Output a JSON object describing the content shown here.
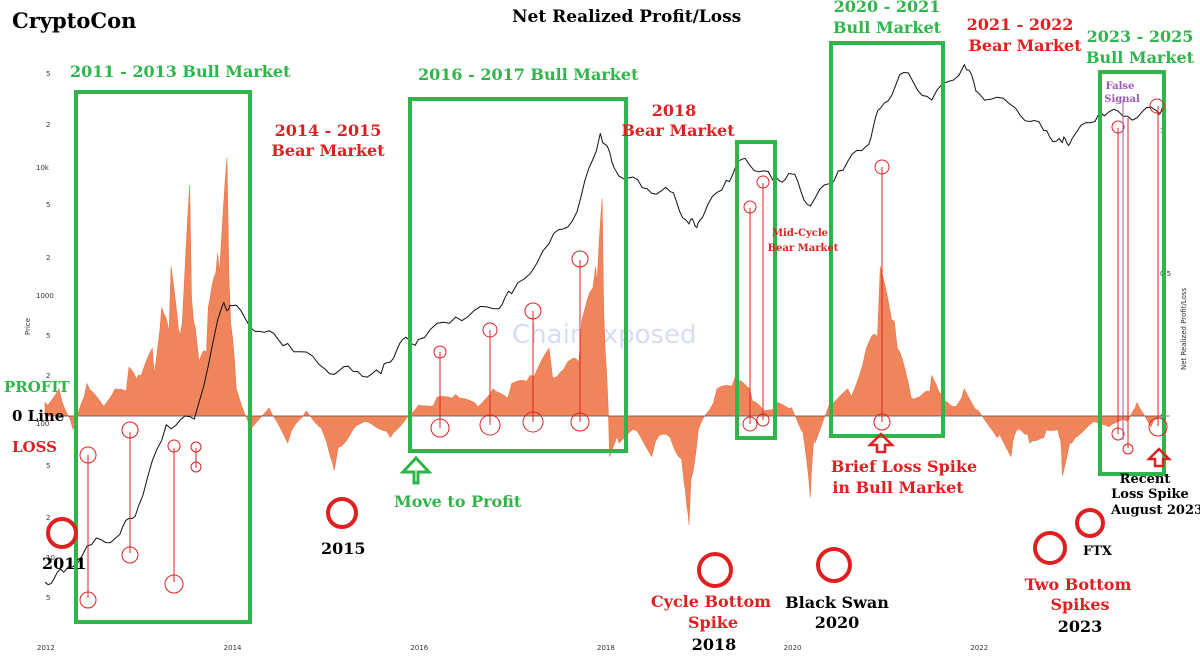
{
  "brand": "CryptoCon",
  "colors": {
    "profit_loss": "#f0845a",
    "price": "#111111",
    "bull": "#2fb54a",
    "bear": "#e02020",
    "marker": "#e02020",
    "false_signal": "#9b59b6",
    "watermark": "#d8dcf4"
  },
  "chart_data": {
    "type": "area",
    "title": "Net Realized Profit/Loss",
    "watermark": "ChainExposed",
    "x_ticks": [
      "2012",
      "2014",
      "2016",
      "2018",
      "2020",
      "2022"
    ],
    "x_range": [
      2012.0,
      2024.0
    ],
    "y_left_label": "Price",
    "y_left_ticks": [
      "5",
      "2",
      "10k",
      "5",
      "2",
      "1000",
      "5",
      "2",
      "100",
      "5",
      "2",
      "10",
      "5"
    ],
    "y_right_label": "Net Realized Profit/Loss",
    "y_right_ticks": [
      "1",
      "0.5",
      "0"
    ],
    "price_series": {
      "name": "Price",
      "x": [
        2012.0,
        2012.2,
        2012.5,
        2012.8,
        2013.0,
        2013.3,
        2013.6,
        2013.9,
        2014.0,
        2014.3,
        2014.6,
        2015.0,
        2015.3,
        2015.6,
        2015.8,
        2016.0,
        2016.4,
        2016.8,
        2017.0,
        2017.4,
        2017.7,
        2017.95,
        2018.1,
        2018.4,
        2018.7,
        2018.9,
        2019.0,
        2019.3,
        2019.5,
        2019.8,
        2020.0,
        2020.2,
        2020.5,
        2020.8,
        2020.95,
        2021.2,
        2021.5,
        2021.85,
        2022.0,
        2022.4,
        2022.7,
        2022.9,
        2023.0,
        2023.3,
        2023.6,
        2023.9,
        2024.0
      ],
      "y": [
        5,
        6,
        10,
        12,
        20,
        90,
        100,
        800,
        800,
        500,
        400,
        250,
        240,
        230,
        400,
        430,
        650,
        760,
        1000,
        2500,
        4500,
        19000,
        10000,
        7000,
        6500,
        3600,
        3700,
        8000,
        12000,
        8000,
        9000,
        5000,
        9500,
        15000,
        30000,
        58000,
        35000,
        67000,
        40000,
        30000,
        20000,
        16000,
        17000,
        28000,
        26000,
        29000,
        30000
      ]
    },
    "profit_loss_series": {
      "name": "Net Realized Profit/Loss",
      "x": [
        2012.0,
        2012.15,
        2012.3,
        2012.45,
        2012.6,
        2012.75,
        2012.9,
        2013.0,
        2013.15,
        2013.25,
        2013.35,
        2013.45,
        2013.55,
        2013.65,
        2013.75,
        2013.85,
        2013.95,
        2014.05,
        2014.2,
        2014.4,
        2014.6,
        2014.8,
        2015.0,
        2015.1,
        2015.3,
        2015.5,
        2015.7,
        2015.85,
        2016.0,
        2016.2,
        2016.4,
        2016.6,
        2016.8,
        2017.0,
        2017.2,
        2017.4,
        2017.6,
        2017.75,
        2017.9,
        2017.97,
        2018.05,
        2018.15,
        2018.3,
        2018.5,
        2018.7,
        2018.85,
        2018.9,
        2019.0,
        2019.2,
        2019.4,
        2019.55,
        2019.7,
        2019.85,
        2020.0,
        2020.1,
        2020.2,
        2020.25,
        2020.4,
        2020.6,
        2020.8,
        2020.95,
        2021.1,
        2021.25,
        2021.4,
        2021.5,
        2021.6,
        2021.7,
        2021.85,
        2022.0,
        2022.2,
        2022.35,
        2022.45,
        2022.55,
        2022.7,
        2022.85,
        2022.9,
        2023.0,
        2023.2,
        2023.4,
        2023.6,
        2023.7,
        2023.85,
        2024.0
      ],
      "y": [
        0.05,
        0.1,
        -0.05,
        0.12,
        0.05,
        0.1,
        0.18,
        0.15,
        0.25,
        0.4,
        0.55,
        0.3,
        0.85,
        0.2,
        0.4,
        0.6,
        0.95,
        0.1,
        -0.05,
        0.03,
        -0.1,
        0.02,
        -0.08,
        -0.2,
        -0.05,
        -0.03,
        -0.08,
        -0.02,
        0.04,
        0.07,
        0.08,
        0.05,
        0.1,
        0.12,
        0.15,
        0.25,
        0.2,
        0.35,
        0.55,
        0.8,
        -0.15,
        -0.1,
        -0.05,
        -0.15,
        -0.08,
        -0.25,
        -0.4,
        -0.05,
        0.1,
        0.15,
        0.1,
        0.02,
        0.05,
        0.03,
        -0.05,
        -0.3,
        -0.1,
        0.04,
        0.1,
        0.25,
        0.55,
        0.35,
        0.12,
        0.08,
        0.15,
        0.08,
        0.04,
        0.1,
        0.02,
        -0.08,
        -0.15,
        -0.05,
        -0.1,
        -0.08,
        -0.05,
        -0.22,
        -0.1,
        -0.03,
        -0.04,
        -0.02,
        0.05,
        -0.04,
        0.02
      ]
    },
    "annotations": {
      "bull_2011_2013": "2011 - 2013 Bull Market",
      "bear_2014_2015": "2014 - 2015 Bear Market",
      "bull_2016_2017": "2016 - 2017 Bull Market",
      "bear_2018": "2018 Bear Market",
      "bull_2020_2021": "2020 - 2021 Bull Market",
      "bear_2021_2022": "2021 - 2022 Bear Market",
      "bull_2023_2025": "2023 - 2025 Bull Market",
      "profit": "PROFIT",
      "zero_line": "0 Line",
      "loss": "LOSS",
      "year_2011": "2011",
      "year_2015": "2015",
      "move_to_profit": "Move to Profit",
      "mid_cycle_bear": "Mid-Cycle Bear Market",
      "brief_loss_spike": "Brief Loss Spike in Bull Market",
      "cycle_bottom_spike": "Cycle Bottom Spike",
      "year_2018": "2018",
      "black_swan": "Black Swan",
      "year_2020": "2020",
      "two_bottom_spikes": "Two Bottom Spikes",
      "year_2023": "2023",
      "ftx": "FTX",
      "false_signal": "False Signal",
      "recent_loss_spike": "Recent Loss Spike August 2023"
    }
  }
}
